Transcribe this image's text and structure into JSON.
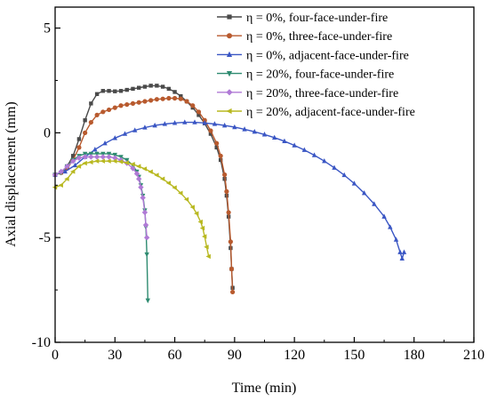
{
  "chart_data": {
    "type": "line",
    "title": "",
    "xlabel": "Time (min)",
    "ylabel": "Axial displacement (mm)",
    "xlim": [
      0,
      210
    ],
    "ylim": [
      -10,
      6
    ],
    "xticks": [
      "0",
      "30",
      "60",
      "90",
      "120",
      "150",
      "180",
      "210"
    ],
    "yticks": [
      "5",
      "0",
      "-5",
      "-10"
    ],
    "grid": false,
    "legend_position": "top-right",
    "series": [
      {
        "name": "η = 0%, four-face-under-fire",
        "color": "#4a4a4a",
        "marker": "square",
        "x": [
          0,
          3,
          6,
          9,
          12,
          15,
          18,
          21,
          24,
          27,
          30,
          33,
          36,
          39,
          42,
          45,
          48,
          51,
          54,
          57,
          60,
          63,
          66,
          69,
          72,
          75,
          78,
          81,
          83,
          85,
          86,
          87,
          88,
          88.5,
          89
        ],
        "y": [
          -2.0,
          -1.9,
          -1.6,
          -1.1,
          -0.3,
          0.6,
          1.4,
          1.85,
          2.0,
          2.0,
          1.98,
          2.0,
          2.05,
          2.1,
          2.15,
          2.2,
          2.25,
          2.25,
          2.2,
          2.1,
          1.95,
          1.75,
          1.5,
          1.2,
          0.85,
          0.45,
          -0.05,
          -0.7,
          -1.3,
          -2.2,
          -3.0,
          -4.0,
          -5.5,
          -6.5,
          -7.4
        ]
      },
      {
        "name": "η = 0%, three-face-under-fire",
        "color": "#b85a2e",
        "marker": "circle",
        "x": [
          0,
          3,
          6,
          9,
          12,
          15,
          18,
          21,
          24,
          27,
          30,
          33,
          36,
          39,
          42,
          45,
          48,
          51,
          54,
          57,
          60,
          63,
          66,
          69,
          72,
          75,
          78,
          81,
          83,
          85,
          86,
          87,
          88,
          88.5,
          89
        ],
        "y": [
          -2.0,
          -1.9,
          -1.7,
          -1.3,
          -0.7,
          0.0,
          0.5,
          0.85,
          1.0,
          1.1,
          1.2,
          1.3,
          1.35,
          1.4,
          1.45,
          1.5,
          1.55,
          1.6,
          1.62,
          1.65,
          1.65,
          1.62,
          1.5,
          1.3,
          1.0,
          0.6,
          0.1,
          -0.5,
          -1.1,
          -2.0,
          -2.8,
          -3.8,
          -5.2,
          -6.5,
          -7.6
        ]
      },
      {
        "name": "η = 0%, adjacent-face-under-fire",
        "color": "#3a56c4",
        "marker": "triangle-up",
        "x": [
          0,
          5,
          10,
          15,
          20,
          25,
          30,
          35,
          40,
          45,
          50,
          55,
          60,
          65,
          70,
          75,
          80,
          85,
          90,
          95,
          100,
          105,
          110,
          115,
          120,
          125,
          130,
          135,
          140,
          145,
          150,
          155,
          160,
          165,
          168,
          171,
          173,
          174,
          175
        ],
        "y": [
          -2.0,
          -1.85,
          -1.55,
          -1.15,
          -0.8,
          -0.5,
          -0.25,
          -0.05,
          0.12,
          0.25,
          0.35,
          0.42,
          0.47,
          0.5,
          0.5,
          0.47,
          0.42,
          0.35,
          0.27,
          0.17,
          0.05,
          -0.08,
          -0.23,
          -0.4,
          -0.6,
          -0.82,
          -1.07,
          -1.35,
          -1.67,
          -2.02,
          -2.42,
          -2.88,
          -3.4,
          -4.0,
          -4.5,
          -5.1,
          -5.7,
          -6.0,
          -5.7
        ]
      },
      {
        "name": "η = 20%, four-face-under-fire",
        "color": "#2e8b70",
        "marker": "triangle-down",
        "x": [
          0,
          3,
          6,
          9,
          12,
          15,
          18,
          21,
          24,
          27,
          30,
          33,
          36,
          39,
          41,
          42,
          43,
          44,
          45,
          45.5,
          46,
          46.5
        ],
        "y": [
          -2.0,
          -1.9,
          -1.6,
          -1.3,
          -1.1,
          -1.0,
          -1.0,
          -1.0,
          -1.0,
          -1.0,
          -1.05,
          -1.15,
          -1.3,
          -1.55,
          -1.85,
          -2.1,
          -2.5,
          -3.0,
          -3.7,
          -4.5,
          -5.8,
          -8.0
        ]
      },
      {
        "name": "η = 20%, three-face-under-fire",
        "color": "#b07ad6",
        "marker": "diamond",
        "x": [
          0,
          3,
          6,
          9,
          12,
          15,
          18,
          21,
          24,
          27,
          30,
          33,
          36,
          39,
          41,
          42,
          43,
          44,
          45,
          45.5,
          46
        ],
        "y": [
          -2.0,
          -1.85,
          -1.6,
          -1.35,
          -1.2,
          -1.15,
          -1.15,
          -1.15,
          -1.15,
          -1.15,
          -1.2,
          -1.3,
          -1.45,
          -1.7,
          -1.95,
          -2.2,
          -2.6,
          -3.1,
          -3.8,
          -4.4,
          -5.0
        ]
      },
      {
        "name": "η = 20%, adjacent-face-under-fire",
        "color": "#b8b820",
        "marker": "triangle-left",
        "x": [
          0,
          3,
          6,
          9,
          12,
          15,
          18,
          21,
          24,
          27,
          30,
          33,
          36,
          39,
          42,
          45,
          48,
          51,
          54,
          57,
          60,
          63,
          66,
          69,
          71,
          73,
          74,
          75,
          76,
          77
        ],
        "y": [
          -2.6,
          -2.5,
          -2.2,
          -1.85,
          -1.6,
          -1.45,
          -1.4,
          -1.35,
          -1.35,
          -1.35,
          -1.35,
          -1.38,
          -1.43,
          -1.5,
          -1.6,
          -1.72,
          -1.86,
          -2.02,
          -2.2,
          -2.4,
          -2.62,
          -2.88,
          -3.18,
          -3.55,
          -3.85,
          -4.25,
          -4.55,
          -4.95,
          -5.45,
          -5.9
        ]
      }
    ]
  }
}
